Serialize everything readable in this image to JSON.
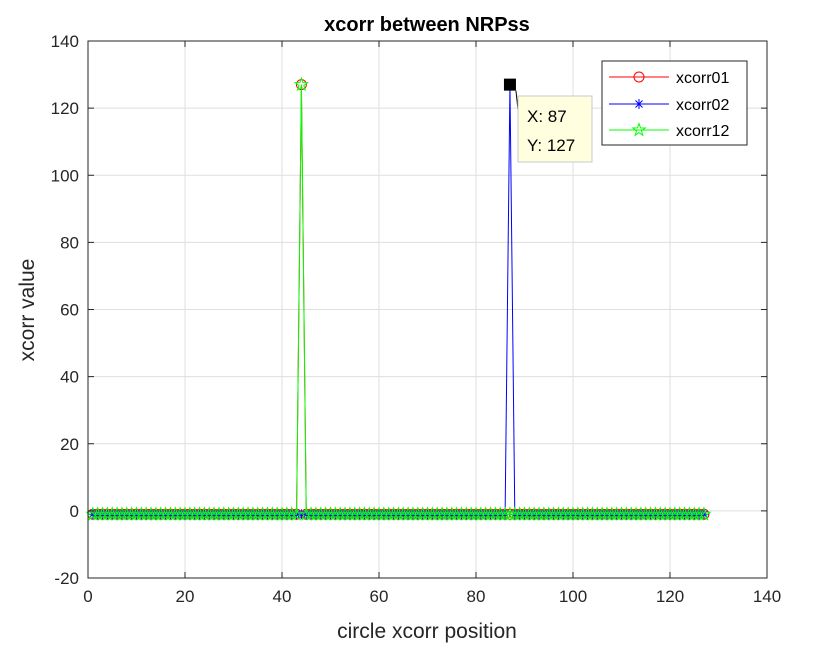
{
  "chart_data": {
    "type": "line",
    "title": "xcorr between NRPss",
    "xlabel": "circle xcorr position",
    "ylabel": "xcorr value",
    "xlim": [
      0,
      140
    ],
    "ylim": [
      -20,
      140
    ],
    "xticks": [
      "0",
      "20",
      "40",
      "60",
      "80",
      "100",
      "120",
      "140"
    ],
    "yticks": [
      "-20",
      "0",
      "20",
      "40",
      "60",
      "80",
      "100",
      "120",
      "140"
    ],
    "grid": true,
    "legend_position": "top-right",
    "x": {
      "start": 1,
      "end": 127
    },
    "series": [
      {
        "name": "xcorr01",
        "color": "#ff0000",
        "marker": "circle",
        "baseline": -1,
        "peaks": [
          {
            "x": 44,
            "y": 127
          }
        ]
      },
      {
        "name": "xcorr02",
        "color": "#0000ff",
        "marker": "asterisk",
        "baseline": -1,
        "peaks": [
          {
            "x": 87,
            "y": 127
          }
        ]
      },
      {
        "name": "xcorr12",
        "color": "#00ff00",
        "marker": "pentagram",
        "baseline": -1,
        "peaks": [
          {
            "x": 44,
            "y": 127
          }
        ]
      }
    ],
    "datatip": {
      "x": 87,
      "y": 127,
      "x_text": "X: 87",
      "y_text": "Y: 127"
    }
  }
}
